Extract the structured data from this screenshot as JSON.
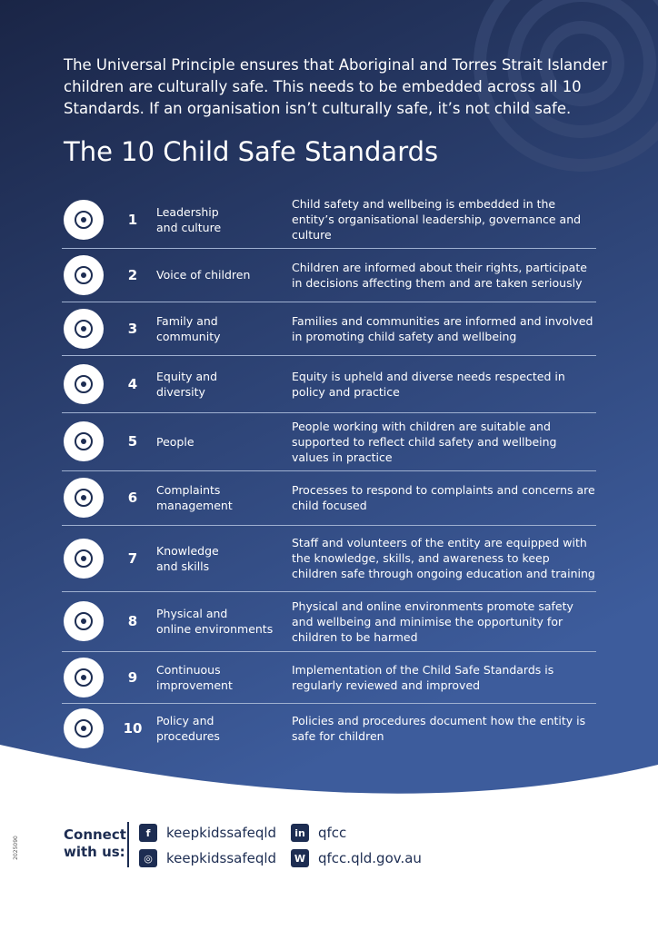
{
  "intro": "The Universal Principle ensures that Aboriginal and Torres Strait Islander children are culturally safe. This needs to be embedded across all 10 Standards. If an organisation isn’t culturally safe, it’s not child safe.",
  "heading": "The 10 Child Safe Standards",
  "standards": [
    {
      "number": "1",
      "name": [
        "Leadership",
        "and culture"
      ],
      "description": "Child safety and wellbeing is embedded in the entity’s organisational leadership, governance and culture"
    },
    {
      "number": "2",
      "name": [
        "Voice of children"
      ],
      "description": "Children are informed about their rights, participate in decisions affecting them and are taken seriously"
    },
    {
      "number": "3",
      "name": [
        "Family and",
        "community"
      ],
      "description": "Families and communities are informed and involved in promoting child safety and wellbeing"
    },
    {
      "number": "4",
      "name": [
        "Equity and",
        "diversity"
      ],
      "description": "Equity is upheld and diverse needs respected in policy and practice"
    },
    {
      "number": "5",
      "name": [
        "People"
      ],
      "description": "People working with children are suitable and supported to reflect child safety and wellbeing values in practice"
    },
    {
      "number": "6",
      "name": [
        "Complaints",
        "management"
      ],
      "description": "Processes to respond to complaints and concerns are child focused"
    },
    {
      "number": "7",
      "name": [
        "Knowledge",
        "and skills"
      ],
      "description": "Staff and volunteers of the entity are equipped with the knowledge, skills, and awareness to keep children safe through ongoing education and training"
    },
    {
      "number": "8",
      "name": [
        "Physical and",
        "online environments"
      ],
      "description": "Physical and online environments promote safety and wellbeing and minimise the opportunity for children to be harmed"
    },
    {
      "number": "9",
      "name": [
        "Continuous",
        "improvement"
      ],
      "description": "Implementation of the Child Safe Standards is regularly reviewed and improved"
    },
    {
      "number": "10",
      "name": [
        "Policy and",
        "procedures"
      ],
      "description": "Policies and procedures document how the entity is safe for children"
    }
  ],
  "footer": {
    "connect": [
      "Connect",
      "with us:"
    ],
    "code": "2025090",
    "links": [
      {
        "icon": "f",
        "text": "keepkidssafeqld"
      },
      {
        "icon": "in",
        "text": "qfcc"
      },
      {
        "icon": "◎",
        "text": "keepkidssafeqld"
      },
      {
        "icon": "W",
        "text": "qfcc.qld.gov.au"
      }
    ]
  }
}
